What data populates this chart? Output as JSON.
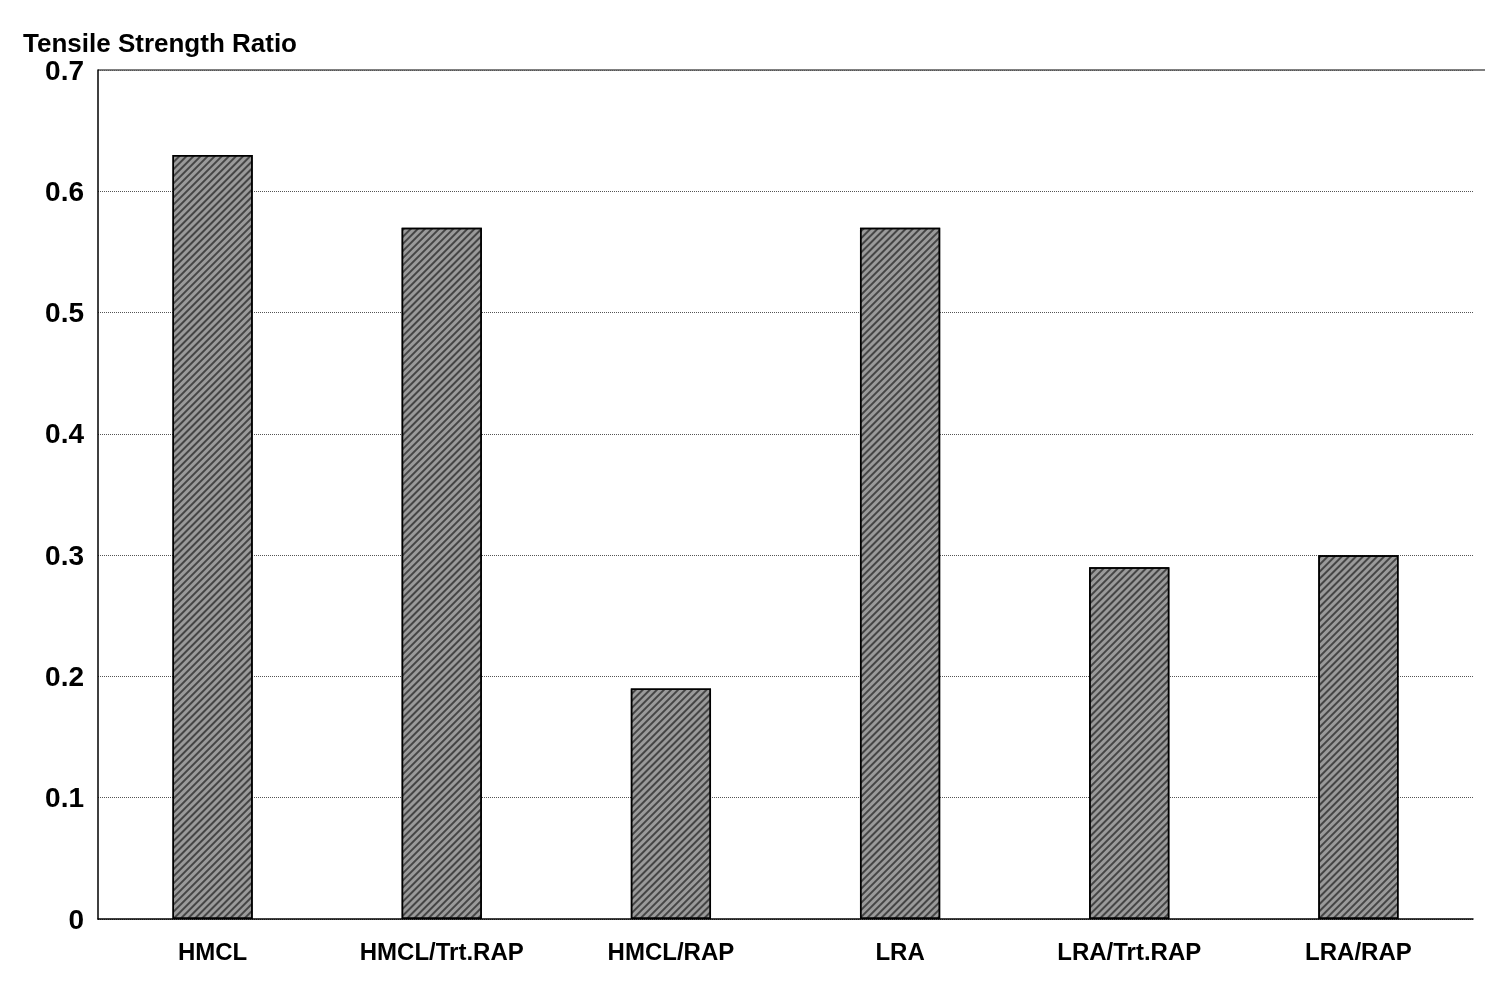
{
  "chart_data": {
    "type": "bar",
    "ylabel": "Tensile Strength Ratio",
    "categories": [
      "HMCL",
      "HMCL/Trt.RAP",
      "HMCL/RAP",
      "LRA",
      "LRA/Trt.RAP",
      "LRA/RAP"
    ],
    "values": [
      0.63,
      0.57,
      0.19,
      0.57,
      0.29,
      0.3
    ],
    "color": "#9a9a9a",
    "ylim": [
      0,
      0.7
    ],
    "yticks": [
      0,
      0.1,
      0.2,
      0.3,
      0.4,
      0.5,
      0.6,
      0.7
    ],
    "grid": "y"
  }
}
